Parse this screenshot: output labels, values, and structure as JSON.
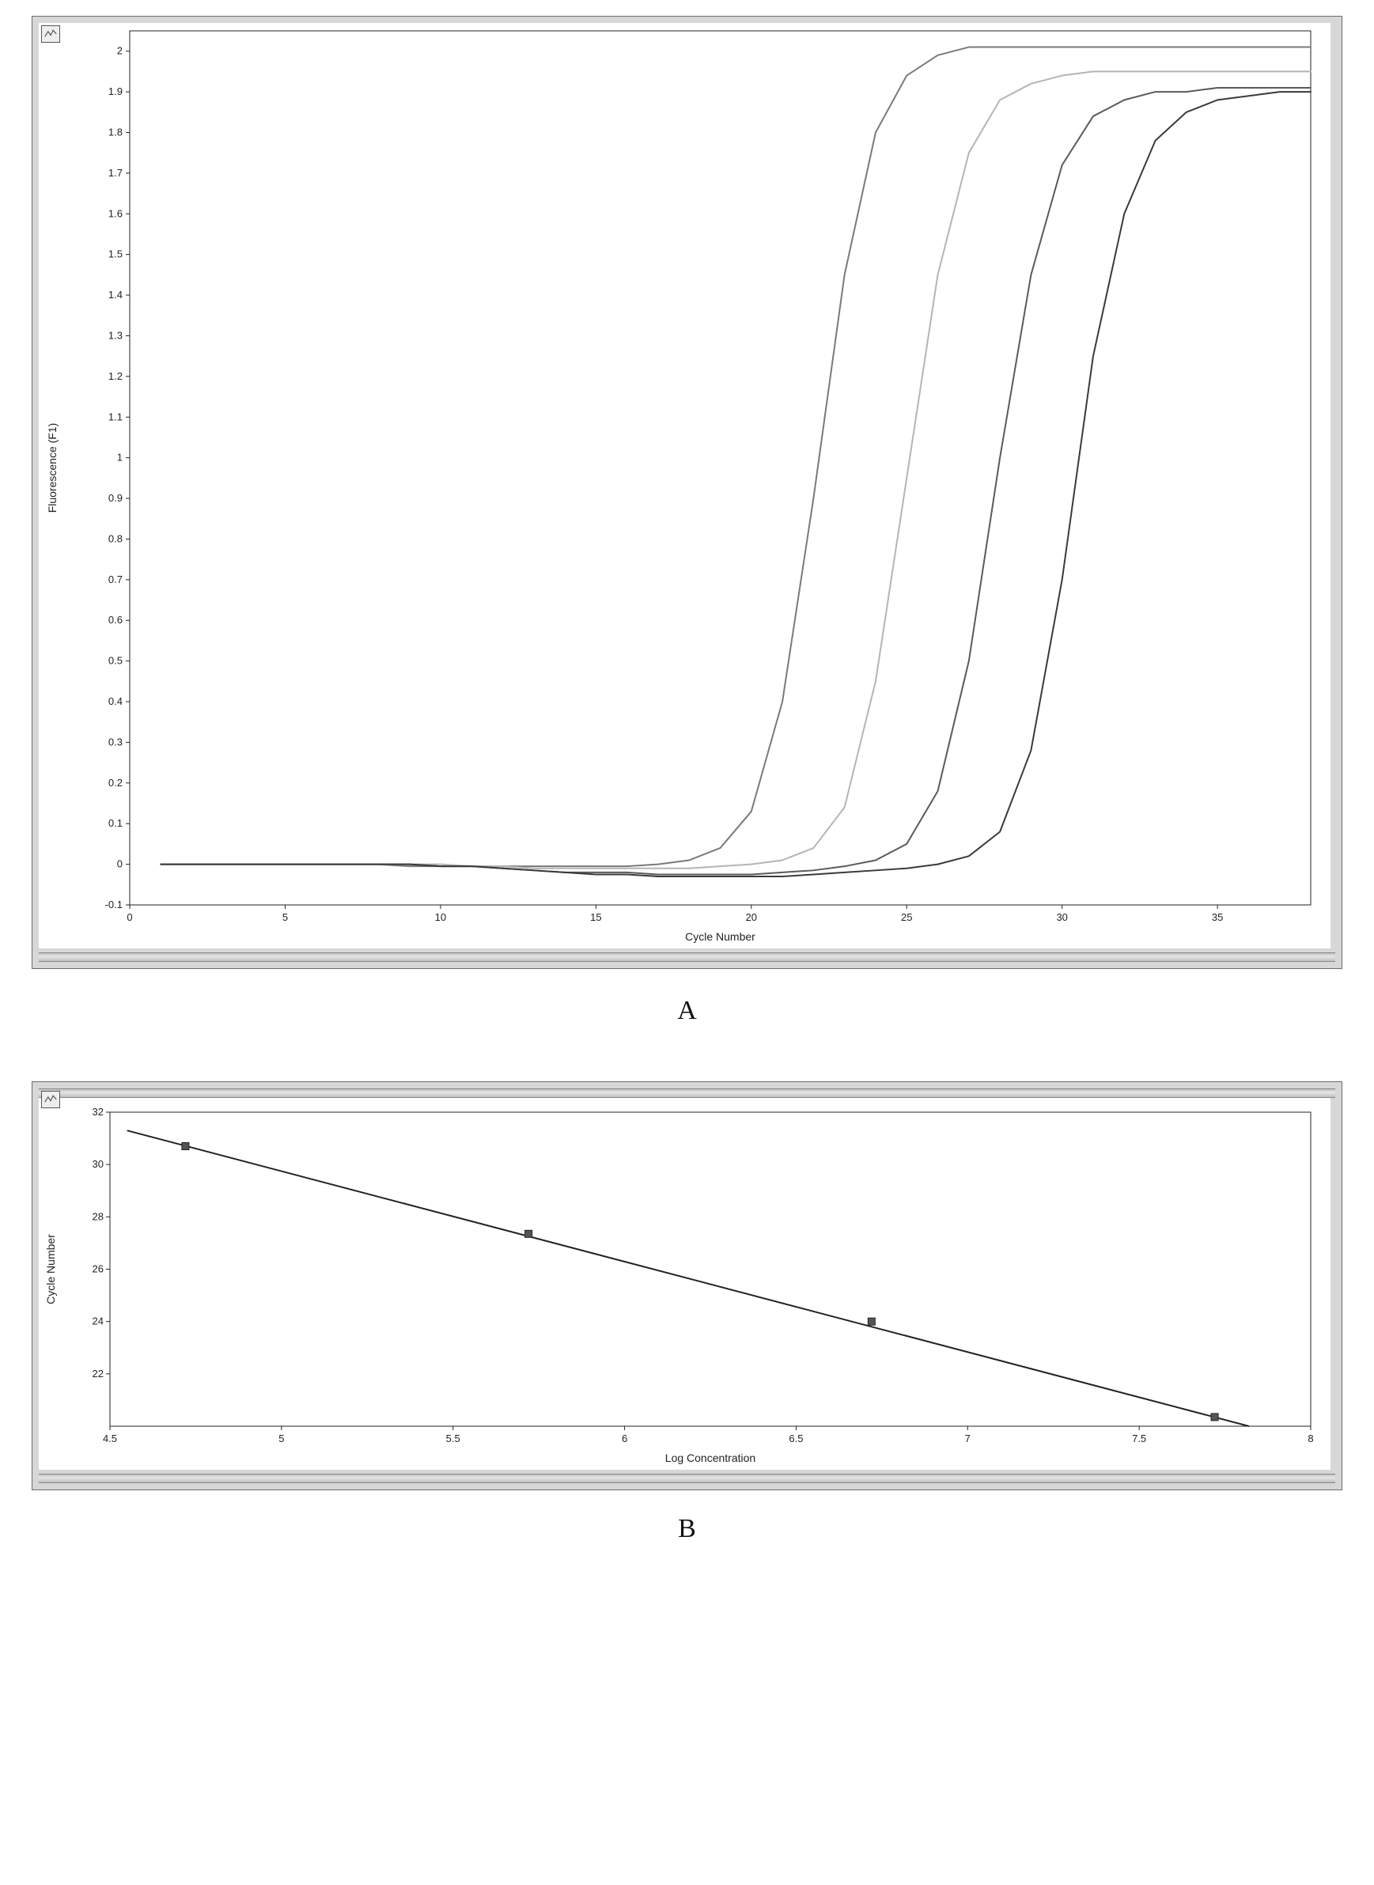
{
  "panelA": {
    "type": "line",
    "xlabel": "Cycle Number",
    "ylabel": "Fluorescence (F1)",
    "xlim": [
      0,
      38
    ],
    "ylim": [
      -0.1,
      2.05
    ],
    "xticks": [
      0,
      5,
      10,
      15,
      20,
      25,
      30,
      35
    ],
    "yticks": [
      -0.1,
      0,
      0.1,
      0.2,
      0.3,
      0.4,
      0.5,
      0.6,
      0.7,
      0.8,
      0.9,
      1,
      1.1,
      1.2,
      1.3,
      1.4,
      1.5,
      1.6,
      1.7,
      1.8,
      1.9,
      2
    ],
    "ytick_labels": [
      "-0.1",
      "0",
      "0.1",
      "0.2",
      "0.3",
      "0.4",
      "0.5",
      "0.6",
      "0.7",
      "0.8",
      "0.9",
      "1",
      "1.1",
      "1.2",
      "1.3",
      "1.4",
      "1.5",
      "1.6",
      "1.7",
      "1.8",
      "1.9",
      "2"
    ],
    "background_color": "#ffffff",
    "panel_bg": "#d7d7d7",
    "axis_color": "#222222",
    "tick_color": "#222222",
    "grid_color": "#eeeeee",
    "line_width": 2,
    "label_fontsize": 14,
    "tick_fontsize": 13,
    "caption": "A",
    "caption_fontsize": 34,
    "curves": [
      {
        "name": "curve1",
        "color": "#7a7a7a",
        "y_plateau": 2.01,
        "points": [
          [
            1,
            0.0
          ],
          [
            2,
            0.0
          ],
          [
            3,
            0.0
          ],
          [
            4,
            0.0
          ],
          [
            5,
            0.0
          ],
          [
            6,
            0.0
          ],
          [
            7,
            0.0
          ],
          [
            8,
            0.0
          ],
          [
            9,
            -0.005
          ],
          [
            10,
            -0.005
          ],
          [
            11,
            -0.005
          ],
          [
            12,
            -0.005
          ],
          [
            13,
            -0.005
          ],
          [
            14,
            -0.005
          ],
          [
            15,
            -0.005
          ],
          [
            16,
            -0.005
          ],
          [
            17,
            0.0
          ],
          [
            18,
            0.01
          ],
          [
            19,
            0.04
          ],
          [
            20,
            0.13
          ],
          [
            21,
            0.4
          ],
          [
            22,
            0.9
          ],
          [
            23,
            1.45
          ],
          [
            24,
            1.8
          ],
          [
            25,
            1.94
          ],
          [
            26,
            1.99
          ],
          [
            27,
            2.01
          ],
          [
            28,
            2.01
          ],
          [
            29,
            2.01
          ],
          [
            30,
            2.01
          ],
          [
            31,
            2.01
          ],
          [
            32,
            2.01
          ],
          [
            33,
            2.01
          ],
          [
            34,
            2.01
          ],
          [
            35,
            2.01
          ],
          [
            36,
            2.01
          ],
          [
            37,
            2.01
          ],
          [
            38,
            2.01
          ]
        ]
      },
      {
        "name": "curve2",
        "color": "#b5b5b5",
        "y_plateau": 1.95,
        "points": [
          [
            1,
            0.0
          ],
          [
            2,
            0.0
          ],
          [
            3,
            0.0
          ],
          [
            4,
            0.0
          ],
          [
            5,
            0.0
          ],
          [
            6,
            0.0
          ],
          [
            7,
            0.0
          ],
          [
            8,
            0.0
          ],
          [
            9,
            0.0
          ],
          [
            10,
            0.0
          ],
          [
            11,
            -0.005
          ],
          [
            12,
            -0.005
          ],
          [
            13,
            -0.01
          ],
          [
            14,
            -0.01
          ],
          [
            15,
            -0.01
          ],
          [
            16,
            -0.01
          ],
          [
            17,
            -0.01
          ],
          [
            18,
            -0.01
          ],
          [
            19,
            -0.005
          ],
          [
            20,
            0.0
          ],
          [
            21,
            0.01
          ],
          [
            22,
            0.04
          ],
          [
            23,
            0.14
          ],
          [
            24,
            0.45
          ],
          [
            25,
            0.95
          ],
          [
            26,
            1.45
          ],
          [
            27,
            1.75
          ],
          [
            28,
            1.88
          ],
          [
            29,
            1.92
          ],
          [
            30,
            1.94
          ],
          [
            31,
            1.95
          ],
          [
            32,
            1.95
          ],
          [
            33,
            1.95
          ],
          [
            34,
            1.95
          ],
          [
            35,
            1.95
          ],
          [
            36,
            1.95
          ],
          [
            37,
            1.95
          ],
          [
            38,
            1.95
          ]
        ]
      },
      {
        "name": "curve3",
        "color": "#5a5a5a",
        "y_plateau": 1.91,
        "points": [
          [
            1,
            0.0
          ],
          [
            2,
            0.0
          ],
          [
            3,
            0.0
          ],
          [
            4,
            0.0
          ],
          [
            5,
            0.0
          ],
          [
            6,
            0.0
          ],
          [
            7,
            0.0
          ],
          [
            8,
            0.0
          ],
          [
            9,
            0.0
          ],
          [
            10,
            -0.005
          ],
          [
            11,
            -0.005
          ],
          [
            12,
            -0.01
          ],
          [
            13,
            -0.015
          ],
          [
            14,
            -0.02
          ],
          [
            15,
            -0.02
          ],
          [
            16,
            -0.02
          ],
          [
            17,
            -0.025
          ],
          [
            18,
            -0.025
          ],
          [
            19,
            -0.025
          ],
          [
            20,
            -0.025
          ],
          [
            21,
            -0.02
          ],
          [
            22,
            -0.015
          ],
          [
            23,
            -0.005
          ],
          [
            24,
            0.01
          ],
          [
            25,
            0.05
          ],
          [
            26,
            0.18
          ],
          [
            27,
            0.5
          ],
          [
            28,
            1.0
          ],
          [
            29,
            1.45
          ],
          [
            30,
            1.72
          ],
          [
            31,
            1.84
          ],
          [
            32,
            1.88
          ],
          [
            33,
            1.9
          ],
          [
            34,
            1.9
          ],
          [
            35,
            1.91
          ],
          [
            36,
            1.91
          ],
          [
            37,
            1.91
          ],
          [
            38,
            1.91
          ]
        ]
      },
      {
        "name": "curve4",
        "color": "#3a3a3a",
        "y_plateau": 1.9,
        "points": [
          [
            1,
            0.0
          ],
          [
            2,
            0.0
          ],
          [
            3,
            0.0
          ],
          [
            4,
            0.0
          ],
          [
            5,
            0.0
          ],
          [
            6,
            0.0
          ],
          [
            7,
            0.0
          ],
          [
            8,
            0.0
          ],
          [
            9,
            0.0
          ],
          [
            10,
            -0.005
          ],
          [
            11,
            -0.005
          ],
          [
            12,
            -0.01
          ],
          [
            13,
            -0.015
          ],
          [
            14,
            -0.02
          ],
          [
            15,
            -0.025
          ],
          [
            16,
            -0.025
          ],
          [
            17,
            -0.03
          ],
          [
            18,
            -0.03
          ],
          [
            19,
            -0.03
          ],
          [
            20,
            -0.03
          ],
          [
            21,
            -0.03
          ],
          [
            22,
            -0.025
          ],
          [
            23,
            -0.02
          ],
          [
            24,
            -0.015
          ],
          [
            25,
            -0.01
          ],
          [
            26,
            0.0
          ],
          [
            27,
            0.02
          ],
          [
            28,
            0.08
          ],
          [
            29,
            0.28
          ],
          [
            30,
            0.7
          ],
          [
            31,
            1.25
          ],
          [
            32,
            1.6
          ],
          [
            33,
            1.78
          ],
          [
            34,
            1.85
          ],
          [
            35,
            1.88
          ],
          [
            36,
            1.89
          ],
          [
            37,
            1.9
          ],
          [
            38,
            1.9
          ]
        ]
      }
    ]
  },
  "panelB": {
    "type": "scatter_line",
    "xlabel": "Log Concentration",
    "ylabel": "Cycle Number",
    "xlim": [
      4.5,
      8.0
    ],
    "ylim": [
      20,
      32
    ],
    "xticks": [
      4.5,
      5,
      5.5,
      6,
      6.5,
      7,
      7.5,
      8
    ],
    "yticks": [
      22,
      24,
      26,
      28,
      30,
      32
    ],
    "top_ytick_label": "32",
    "background_color": "#ffffff",
    "panel_bg": "#d7d7d7",
    "axis_color": "#222222",
    "tick_color": "#222222",
    "line_color": "#222222",
    "line_width": 2,
    "marker_color": "#555555",
    "marker_border": "#222222",
    "marker_size": 9,
    "label_fontsize": 14,
    "tick_fontsize": 13,
    "caption": "B",
    "caption_fontsize": 34,
    "points": [
      {
        "x": 4.72,
        "y": 30.7
      },
      {
        "x": 5.72,
        "y": 27.35
      },
      {
        "x": 6.72,
        "y": 24.0
      },
      {
        "x": 7.72,
        "y": 20.35
      }
    ],
    "fit_line": {
      "x1": 4.55,
      "y1": 31.3,
      "x2": 7.82,
      "y2": 20.0
    }
  }
}
